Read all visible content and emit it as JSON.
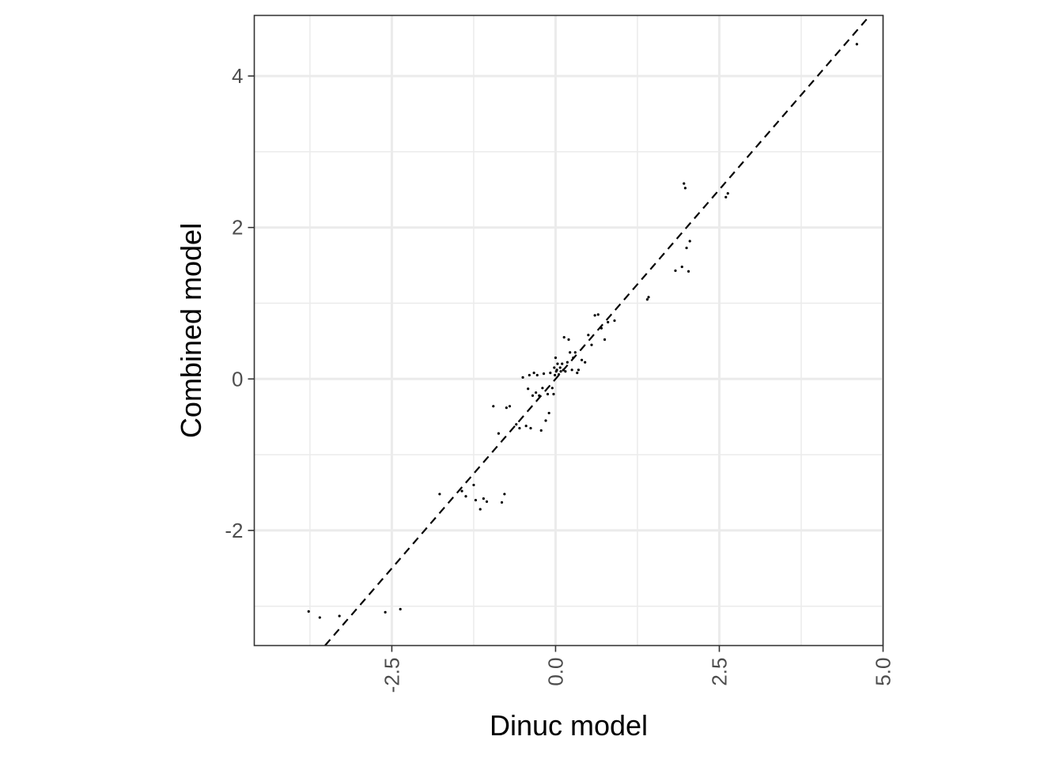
{
  "chart_data": {
    "type": "scatter",
    "title": "",
    "xlabel": "Dinuc model",
    "ylabel": "Combined model",
    "xlim": [
      -4.6,
      5.0
    ],
    "ylim": [
      -3.52,
      4.8
    ],
    "x_ticks": [
      -2.5,
      0.0,
      2.5,
      5.0
    ],
    "x_tick_labels": [
      "-2.5",
      "0.0",
      "2.5",
      "5.0"
    ],
    "y_ticks": [
      -2,
      0,
      2,
      4
    ],
    "y_tick_labels": [
      "-2",
      "0",
      "2",
      "4"
    ],
    "grid": true,
    "legend": "none",
    "reference_line": {
      "slope": 1,
      "intercept": 0,
      "style": "dashed"
    },
    "points": {
      "x": [
        -3.77,
        -3.6,
        -3.3,
        -2.6,
        -2.37,
        -1.77,
        -1.43,
        -1.37,
        -1.25,
        -1.22,
        -1.15,
        -1.1,
        -1.05,
        -0.95,
        -0.87,
        -0.82,
        -0.78,
        -0.75,
        -0.7,
        -0.6,
        -0.55,
        -0.5,
        -0.45,
        -0.42,
        -0.4,
        -0.38,
        -0.35,
        -0.33,
        -0.3,
        -0.28,
        -0.25,
        -0.22,
        -0.2,
        -0.18,
        -0.15,
        -0.12,
        -0.1,
        -0.08,
        -0.05,
        -0.03,
        -0.02,
        -0.01,
        0.0,
        0.01,
        0.02,
        0.03,
        0.05,
        0.07,
        0.08,
        0.1,
        0.12,
        0.13,
        0.15,
        0.18,
        0.2,
        0.22,
        0.25,
        0.27,
        0.3,
        0.33,
        0.35,
        0.4,
        0.45,
        0.5,
        0.55,
        0.6,
        0.65,
        0.7,
        0.75,
        0.8,
        0.9,
        1.4,
        1.42,
        1.83,
        1.93,
        1.96,
        1.98,
        2.0,
        2.03,
        2.05,
        2.6,
        2.63,
        4.6
      ],
      "y": [
        -3.07,
        -3.15,
        -3.13,
        -3.08,
        -3.04,
        -1.52,
        -1.48,
        -1.55,
        -1.4,
        -1.6,
        -1.72,
        -1.58,
        -1.62,
        -0.36,
        -0.72,
        -1.63,
        -1.52,
        -0.38,
        -0.36,
        -0.6,
        -0.65,
        0.02,
        -0.62,
        -0.13,
        0.05,
        -0.65,
        -0.22,
        0.08,
        -0.18,
        0.05,
        -0.22,
        -0.68,
        -0.12,
        0.07,
        -0.55,
        -0.2,
        -0.45,
        0.08,
        -0.12,
        -0.2,
        0.15,
        0.05,
        0.28,
        0.1,
        0.12,
        0.2,
        0.06,
        0.15,
        0.1,
        0.2,
        0.12,
        0.55,
        0.1,
        0.22,
        0.52,
        0.35,
        0.12,
        0.28,
        0.35,
        0.08,
        0.12,
        0.25,
        0.22,
        0.58,
        0.45,
        0.84,
        0.85,
        0.67,
        0.52,
        0.75,
        0.77,
        1.05,
        1.08,
        1.43,
        1.48,
        2.58,
        2.52,
        1.73,
        1.42,
        1.82,
        2.4,
        2.45,
        4.42
      ]
    }
  }
}
